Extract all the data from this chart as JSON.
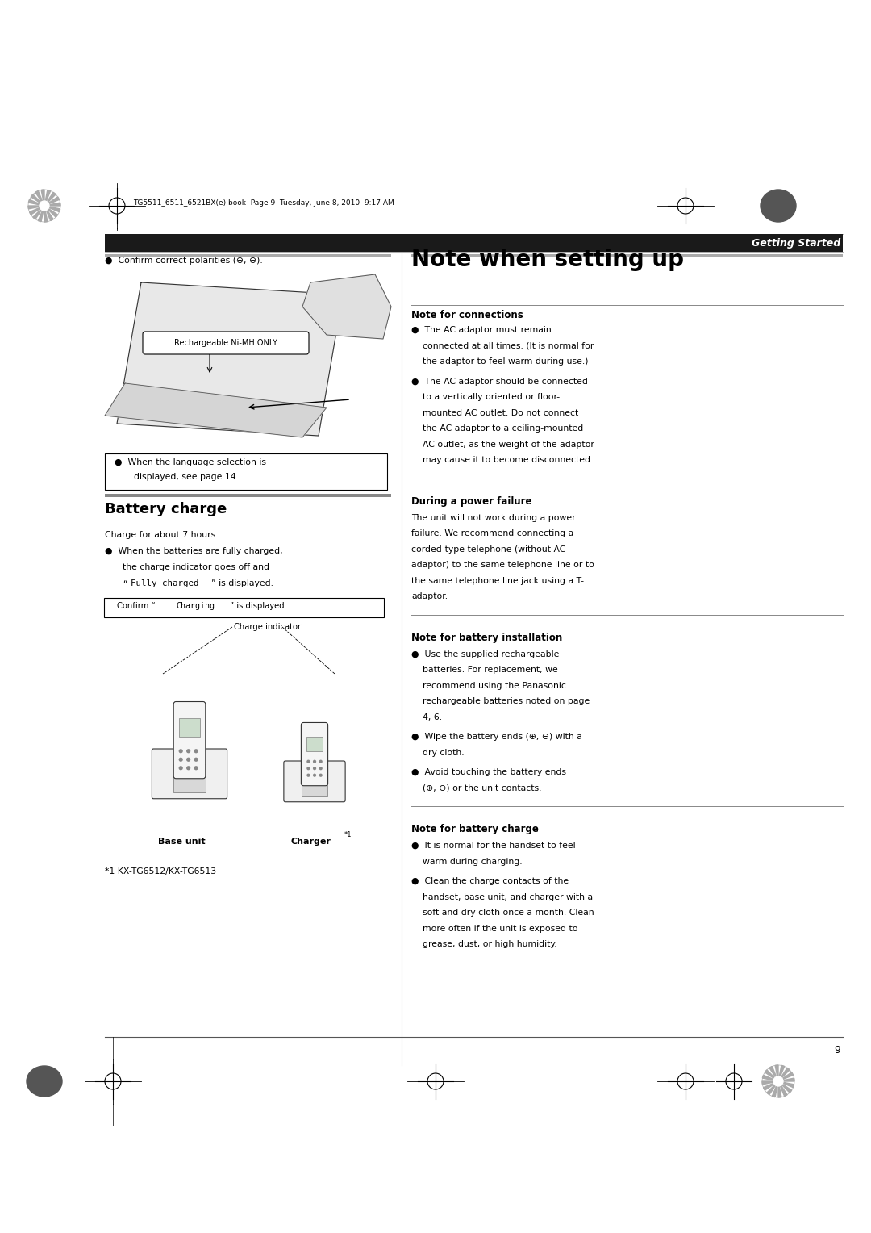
{
  "page_width": 10.8,
  "page_height": 15.28,
  "bg_color": "#ffffff",
  "header_bar_color": "#1a1a1a",
  "header_text": "Getting Started",
  "header_text_color": "#ffffff",
  "page_number": "9",
  "file_info": "TG5511_6511_6521BX(e).book  Page 9  Tuesday, June 8, 2010  9:17 AM",
  "main_title": "Note when setting up",
  "battery_charge_title": "Battery charge",
  "confirm_polarity_text": "Confirm correct polarities (⊕, ⊖).",
  "rechargeable_label": "Rechargeable Ni-MH ONLY",
  "language_note_line1": "When the language selection is",
  "language_note_line2": "displayed, see page 14.",
  "charge_about": "Charge for about 7 hours.",
  "charge_bullet1_line1": "When the batteries are fully charged,",
  "charge_bullet1_line2": "the charge indicator goes off and",
  "charge_bullet1_line3": "“Fully charged” is displayed.",
  "confirm_charging_text": "Confirm “Charging” is displayed.",
  "charge_indicator_label": "Charge indicator",
  "base_unit_label": "Base unit",
  "charger_label": "Charger",
  "charger_superscript": "*1",
  "footnote": "*1 KX-TG6512/KX-TG6513",
  "note_connections_title": "Note for connections",
  "note_connections_b1_lines": [
    "The AC adaptor must remain",
    "connected at all times. (It is normal for",
    "the adaptor to feel warm during use.)"
  ],
  "note_connections_b2_lines": [
    "The AC adaptor should be connected",
    "to a vertically oriented or floor-",
    "mounted AC outlet. Do not connect",
    "the AC adaptor to a ceiling-mounted",
    "AC outlet, as the weight of the adaptor",
    "may cause it to become disconnected."
  ],
  "during_power_title": "During a power failure",
  "during_power_lines": [
    "The unit will not work during a power",
    "failure. We recommend connecting a",
    "corded-type telephone (without AC",
    "adaptor) to the same telephone line or to",
    "the same telephone line jack using a T-",
    "adaptor."
  ],
  "note_battery_install_title": "Note for battery installation",
  "nbi_b1_lines": [
    "Use the supplied rechargeable",
    "batteries. For replacement, we",
    "recommend using the Panasonic",
    "rechargeable batteries noted on page",
    "4, 6."
  ],
  "nbi_b2_lines": [
    "Wipe the battery ends (⊕, ⊖) with a",
    "dry cloth."
  ],
  "nbi_b3_lines": [
    "Avoid touching the battery ends",
    "(⊕, ⊖) or the unit contacts."
  ],
  "note_battery_charge_title": "Note for battery charge",
  "nbc_b1_lines": [
    "It is normal for the handset to feel",
    "warm during charging."
  ],
  "nbc_b2_lines": [
    "Clean the charge contacts of the",
    "handset, base unit, and charger with a",
    "soft and dry cloth once a month. Clean",
    "more often if the unit is exposed to",
    "grease, dust, or high humidity."
  ]
}
